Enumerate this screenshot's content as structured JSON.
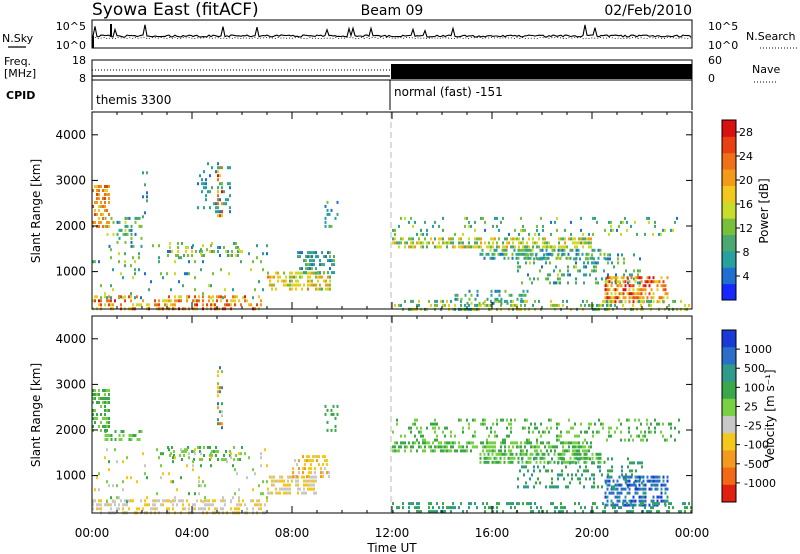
{
  "header": {
    "station": "Syowa East (fitACF)",
    "beam": "Beam 09",
    "date": "02/Feb/2010"
  },
  "noise_panel": {
    "left_label": "N.Sky",
    "left_ticks": [
      "10^5",
      "10^0"
    ],
    "right_label": "N.Search",
    "right_ticks": [
      "10^5",
      "10^0"
    ]
  },
  "freq_panel": {
    "left_label_1": "Freq.",
    "left_label_2": "[MHz]",
    "left_ticks": [
      "18",
      "8"
    ],
    "right_label": "Nave",
    "right_ticks": [
      "60",
      "0"
    ]
  },
  "cpid": {
    "label": "CPID",
    "mode_1": "themis 3300",
    "mode_2": "normal (fast) -151"
  },
  "chart_data": [
    {
      "type": "heatmap",
      "quantity": "Power",
      "xlabel": "",
      "ylabel": "Slant Range [km]",
      "x_range_hours": [
        0,
        24
      ],
      "x_ticks": [
        "00:00",
        "04:00",
        "08:00",
        "12:00",
        "16:00",
        "20:00",
        "00:00"
      ],
      "ylim": [
        180,
        4500
      ],
      "y_ticks": [
        1000,
        2000,
        3000,
        4000
      ],
      "colorbar": {
        "label": "Power [dB]",
        "ticks": [
          "4",
          "8",
          "12",
          "16",
          "20",
          "24",
          "28"
        ],
        "range": [
          0,
          30
        ]
      },
      "regions": [
        {
          "t0": 0.0,
          "t1": 0.7,
          "r0": 2000,
          "r1": 2900,
          "v0": 16,
          "v1": 26,
          "d": 0.6
        },
        {
          "t0": 0.0,
          "t1": 6.8,
          "r0": 200,
          "r1": 480,
          "v0": 14,
          "v1": 28,
          "d": 0.45
        },
        {
          "t0": 0.5,
          "t1": 2.0,
          "r0": 1500,
          "r1": 2200,
          "v0": 4,
          "v1": 16,
          "d": 0.22
        },
        {
          "t0": 2.0,
          "t1": 2.2,
          "r0": 2200,
          "r1": 3200,
          "v0": 4,
          "v1": 12,
          "d": 0.25
        },
        {
          "t0": 3.0,
          "t1": 6.0,
          "r0": 1350,
          "r1": 1650,
          "v0": 4,
          "v1": 18,
          "d": 0.35
        },
        {
          "t0": 4.2,
          "t1": 5.5,
          "r0": 2300,
          "r1": 3400,
          "v0": 4,
          "v1": 10,
          "d": 0.18
        },
        {
          "t0": 5.0,
          "t1": 5.2,
          "r0": 2000,
          "r1": 3400,
          "v0": 8,
          "v1": 28,
          "d": 0.4
        },
        {
          "t0": 0.0,
          "t1": 7.0,
          "r0": 400,
          "r1": 1600,
          "v0": 4,
          "v1": 16,
          "d": 0.08
        },
        {
          "t0": 7.0,
          "t1": 9.5,
          "r0": 620,
          "r1": 1000,
          "v0": 10,
          "v1": 22,
          "d": 0.55
        },
        {
          "t0": 8.2,
          "t1": 9.7,
          "r0": 1000,
          "r1": 1450,
          "v0": 4,
          "v1": 12,
          "d": 0.5
        },
        {
          "t0": 9.3,
          "t1": 9.8,
          "r0": 2000,
          "r1": 2550,
          "v0": 4,
          "v1": 12,
          "d": 0.3
        },
        {
          "t0": 12.0,
          "t1": 20.0,
          "r0": 1550,
          "r1": 1750,
          "v0": 8,
          "v1": 20,
          "d": 0.6
        },
        {
          "t0": 15.5,
          "t1": 20.5,
          "r0": 1300,
          "r1": 1500,
          "v0": 4,
          "v1": 14,
          "d": 0.55
        },
        {
          "t0": 12.0,
          "t1": 23.5,
          "r0": 1800,
          "r1": 2200,
          "v0": 4,
          "v1": 16,
          "d": 0.12
        },
        {
          "t0": 17.0,
          "t1": 22.0,
          "r0": 700,
          "r1": 1400,
          "v0": 4,
          "v1": 14,
          "d": 0.25
        },
        {
          "t0": 20.5,
          "t1": 23.0,
          "r0": 300,
          "r1": 900,
          "v0": 14,
          "v1": 30,
          "d": 0.6
        },
        {
          "t0": 12.0,
          "t1": 24.0,
          "r0": 200,
          "r1": 380,
          "v0": 6,
          "v1": 18,
          "d": 0.35
        },
        {
          "t0": 14.5,
          "t1": 17.5,
          "r0": 300,
          "r1": 600,
          "v0": 4,
          "v1": 14,
          "d": 0.2
        }
      ]
    },
    {
      "type": "heatmap",
      "quantity": "Velocity",
      "xlabel": "Time UT",
      "ylabel": "Slant Range [km]",
      "x_range_hours": [
        0,
        24
      ],
      "x_ticks": [
        "00:00",
        "04:00",
        "08:00",
        "12:00",
        "16:00",
        "20:00",
        "00:00"
      ],
      "ylim": [
        180,
        4500
      ],
      "y_ticks": [
        1000,
        2000,
        3000,
        4000
      ],
      "colorbar": {
        "label": "Velocity [m s⁻¹]",
        "ticks": [
          "1000",
          "500",
          "100",
          "25",
          "-25",
          "-100",
          "-500",
          "-1000"
        ],
        "levels": [
          1000,
          500,
          100,
          25,
          -25,
          -100,
          -500,
          -1000
        ]
      },
      "regions": [
        {
          "t0": 0.0,
          "t1": 0.7,
          "r0": 2000,
          "r1": 2900,
          "v0": 3,
          "v1": 4,
          "d": 0.55
        },
        {
          "t0": 0.0,
          "t1": 7.0,
          "r0": 200,
          "r1": 480,
          "v0": 5,
          "v1": 6,
          "d": 0.45
        },
        {
          "t0": 0.5,
          "t1": 2.0,
          "r0": 1750,
          "r1": 2000,
          "v0": 3,
          "v1": 4,
          "d": 0.45
        },
        {
          "t0": 3.0,
          "t1": 6.0,
          "r0": 1350,
          "r1": 1650,
          "v0": 3,
          "v1": 4,
          "d": 0.4
        },
        {
          "t0": 5.0,
          "t1": 5.2,
          "r0": 2000,
          "r1": 3400,
          "v0": 0,
          "v1": 8,
          "d": 0.4
        },
        {
          "t0": 0.0,
          "t1": 7.0,
          "r0": 400,
          "r1": 1600,
          "v0": 3,
          "v1": 6,
          "d": 0.07
        },
        {
          "t0": 7.0,
          "t1": 9.0,
          "r0": 620,
          "r1": 1000,
          "v0": 5,
          "v1": 6,
          "d": 0.6
        },
        {
          "t0": 8.0,
          "t1": 9.5,
          "r0": 1000,
          "r1": 1450,
          "v0": 5,
          "v1": 7,
          "d": 0.55
        },
        {
          "t0": 9.3,
          "t1": 9.8,
          "r0": 2000,
          "r1": 2550,
          "v0": 3,
          "v1": 3,
          "d": 0.25
        },
        {
          "t0": 12.0,
          "t1": 20.0,
          "r0": 1550,
          "r1": 1750,
          "v0": 3,
          "v1": 4,
          "d": 0.6
        },
        {
          "t0": 15.5,
          "t1": 20.5,
          "r0": 1300,
          "r1": 1500,
          "v0": 3,
          "v1": 4,
          "d": 0.55
        },
        {
          "t0": 12.0,
          "t1": 23.5,
          "r0": 1800,
          "r1": 2250,
          "v0": 3,
          "v1": 4,
          "d": 0.22
        },
        {
          "t0": 17.0,
          "t1": 22.0,
          "r0": 700,
          "r1": 1400,
          "v0": 2,
          "v1": 3,
          "d": 0.25
        },
        {
          "t0": 20.5,
          "t1": 23.0,
          "r0": 300,
          "r1": 1000,
          "v0": 0,
          "v1": 2,
          "d": 0.6
        },
        {
          "t0": 12.0,
          "t1": 24.0,
          "r0": 200,
          "r1": 420,
          "v0": 2,
          "v1": 3,
          "d": 0.35
        }
      ]
    }
  ],
  "colors": {
    "power_scale": [
      "#1428ff",
      "#1e6fd0",
      "#27a0a0",
      "#4aa870",
      "#78c03a",
      "#c8dc2a",
      "#f0c81e",
      "#f59a18",
      "#f07018",
      "#e84010",
      "#d81010"
    ],
    "velocity_scale": [
      "#1a3ad8",
      "#2a6ec8",
      "#2e9a8a",
      "#3aa84a",
      "#78d044",
      "#c8c8c8",
      "#f4c81a",
      "#f49a20",
      "#f26a14",
      "#e02010"
    ]
  }
}
